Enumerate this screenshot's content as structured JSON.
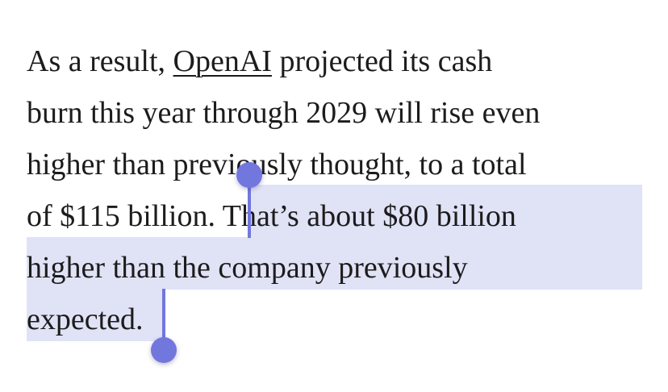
{
  "article": {
    "lines": [
      {
        "before": "As a result, ",
        "link": "OpenAI",
        "after": " projected its cash"
      },
      {
        "text": "burn this year through 2029 will rise even"
      },
      {
        "text": "higher than previously thought, to a total"
      },
      {
        "plain": "of $115 billion. ",
        "selected": "That’s about $80 billion"
      },
      {
        "selected": "higher than the company previously"
      },
      {
        "selected": "expected."
      }
    ]
  },
  "selection": {
    "highlight_color": "#e0e2f6",
    "handle_color": "#7277de"
  }
}
